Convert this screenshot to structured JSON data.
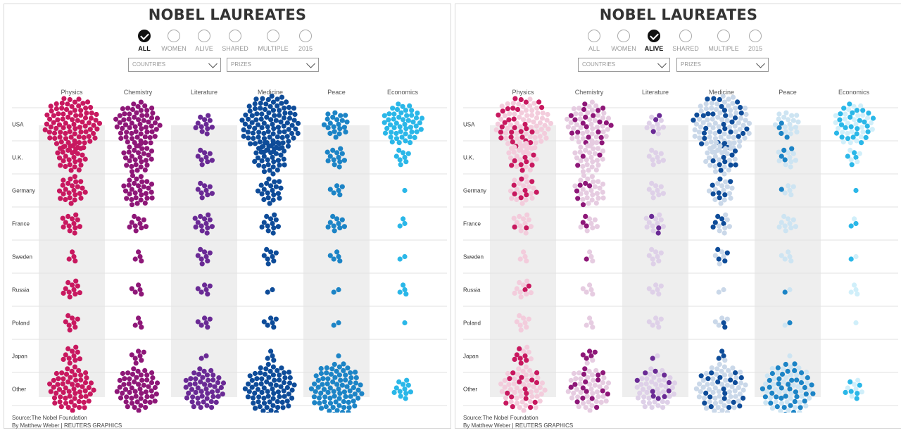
{
  "source": "Source:The Nobel Foundation",
  "credit": "By Matthew Weber | REUTERS GRAPHICS",
  "panels": [
    {
      "title": "NOBEL LAUREATES",
      "filters": [
        "ALL",
        "WOMEN",
        "ALIVE",
        "SHARED",
        "MULTIPLE",
        "2015"
      ],
      "active_filter": "ALL",
      "countries_label": "COUNTRIES",
      "prizes_label": "PRIZES"
    },
    {
      "title": "NOBEL LAUREATES",
      "filters": [
        "ALL",
        "WOMEN",
        "ALIVE",
        "SHARED",
        "MULTIPLE",
        "2015"
      ],
      "active_filter": "ALIVE",
      "countries_label": "COUNTRIES",
      "prizes_label": "PRIZES"
    }
  ],
  "colors": {
    "Physics": "#c8185f",
    "Chemistry": "#8e1778",
    "Literature": "#6a2a95",
    "Medicine": "#0e4c99",
    "Peace": "#1c84c6",
    "Economics": "#2ab7e8",
    "band": "#eeeeee",
    "grid": "#e2e2e2"
  },
  "chart_data": [
    {
      "type": "bubble-grid",
      "filter": "ALL",
      "columns": [
        "Physics",
        "Chemistry",
        "Literature",
        "Medicine",
        "Peace",
        "Economics"
      ],
      "rows": [
        "USA",
        "U.K.",
        "Germany",
        "France",
        "Sweden",
        "Russia",
        "Poland",
        "Japan",
        "Other"
      ],
      "counts": {
        "Physics": [
          90,
          26,
          24,
          13,
          4,
          11,
          8,
          11,
          60
        ],
        "Chemistry": [
          60,
          28,
          30,
          10,
          4,
          5,
          4,
          7,
          55
        ],
        "Literature": [
          12,
          9,
          9,
          13,
          8,
          6,
          6,
          2,
          50
        ],
        "Medicine": [
          100,
          33,
          20,
          12,
          8,
          2,
          6,
          4,
          75
        ],
        "Peace": [
          21,
          13,
          6,
          10,
          5,
          2,
          2,
          1,
          80
        ],
        "Economics": [
          50,
          8,
          1,
          3,
          2,
          4,
          1,
          0,
          12
        ]
      },
      "highlight": null
    },
    {
      "type": "bubble-grid",
      "filter": "ALIVE",
      "columns": [
        "Physics",
        "Chemistry",
        "Literature",
        "Medicine",
        "Peace",
        "Economics"
      ],
      "rows": [
        "USA",
        "U.K.",
        "Germany",
        "France",
        "Sweden",
        "Russia",
        "Poland",
        "Japan",
        "Other"
      ],
      "counts": {
        "Physics": [
          90,
          26,
          24,
          13,
          4,
          11,
          8,
          11,
          60
        ],
        "Chemistry": [
          60,
          28,
          30,
          10,
          4,
          5,
          4,
          7,
          55
        ],
        "Literature": [
          12,
          9,
          9,
          13,
          8,
          6,
          6,
          2,
          50
        ],
        "Medicine": [
          100,
          33,
          20,
          12,
          8,
          2,
          6,
          4,
          75
        ],
        "Peace": [
          21,
          13,
          6,
          10,
          5,
          2,
          2,
          1,
          80
        ],
        "Economics": [
          50,
          8,
          1,
          3,
          2,
          4,
          1,
          0,
          12
        ]
      },
      "highlight": {
        "Physics": [
          28,
          8,
          8,
          2,
          0,
          2,
          0,
          7,
          16
        ],
        "Chemistry": [
          20,
          3,
          6,
          3,
          1,
          0,
          0,
          5,
          16
        ],
        "Literature": [
          3,
          0,
          0,
          3,
          0,
          0,
          0,
          1,
          10
        ],
        "Medicine": [
          30,
          10,
          7,
          5,
          4,
          0,
          2,
          3,
          20
        ],
        "Peace": [
          4,
          4,
          1,
          0,
          0,
          1,
          1,
          0,
          40
        ],
        "Economics": [
          25,
          4,
          1,
          2,
          1,
          0,
          0,
          0,
          6
        ]
      }
    }
  ]
}
